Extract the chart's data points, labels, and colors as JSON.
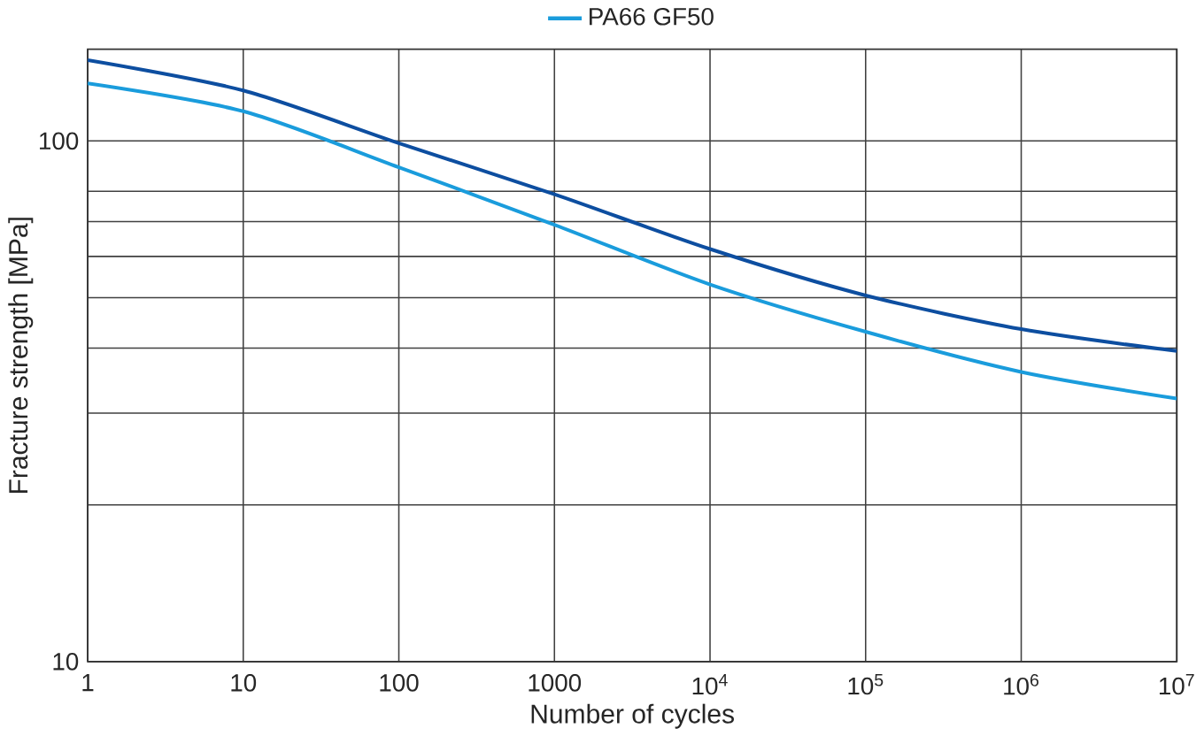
{
  "chart_data": {
    "type": "line",
    "xlabel": "Number of cycles",
    "ylabel": "Fracture strength [MPa]",
    "log": "xy",
    "grid": true,
    "legend": "top",
    "line_style": "solid",
    "marker": "none",
    "x": [
      1,
      10,
      100,
      1000,
      10000,
      100000,
      1000000,
      10000000
    ],
    "series": [
      {
        "color": "#0d4ea0",
        "values": [
          143,
          125,
          99,
          79,
          62,
          50.5,
          43.5,
          39.5
        ]
      },
      {
        "name": "PA66 GF50",
        "color": "#1a9cdc",
        "values": [
          129,
          114,
          89,
          69,
          53,
          43,
          36,
          32
        ]
      }
    ],
    "xlim": [
      1,
      10000000
    ],
    "ylim": [
      10,
      150
    ],
    "xticks": [
      1,
      10,
      100,
      1000,
      {
        "value": 10000,
        "label": "10$^{4}$"
      },
      {
        "value": 100000,
        "label": "10$^{5}$"
      },
      {
        "value": 1000000,
        "label": "10$^{6}$"
      },
      {
        "value": 10000000,
        "label": "10$^{7}$"
      }
    ],
    "yticks": [
      10,
      {
        "value": 20,
        "label": null
      },
      {
        "value": 30,
        "label": null
      },
      {
        "value": 40,
        "label": null
      },
      {
        "value": 50,
        "label": null
      },
      {
        "value": 60,
        "label": null
      },
      {
        "value": 70,
        "label": null
      },
      {
        "value": 80,
        "label": null
      },
      100
    ]
  }
}
